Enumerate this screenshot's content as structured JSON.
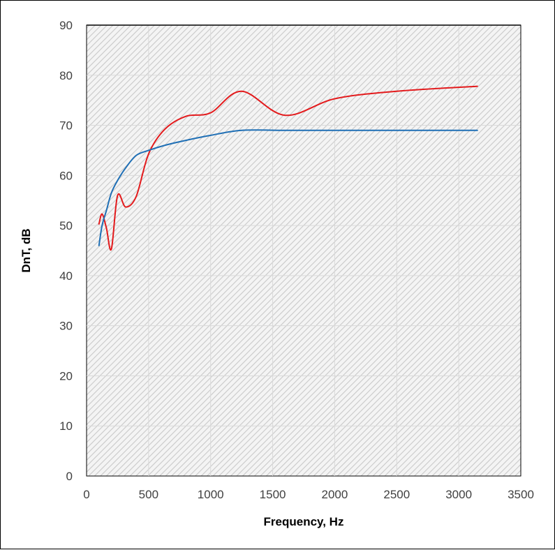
{
  "chart_data": {
    "type": "line",
    "title": "",
    "xlabel": "Frequency, Hz",
    "ylabel": "DnT, dB",
    "xlim": [
      0,
      3500
    ],
    "ylim": [
      0,
      90
    ],
    "xticks": [
      "0",
      "500",
      "1000",
      "1500",
      "2000",
      "2500",
      "3000",
      "3500"
    ],
    "yticks": [
      "0",
      "10",
      "20",
      "30",
      "40",
      "50",
      "60",
      "70",
      "80",
      "90"
    ],
    "grid": true,
    "legend": "none",
    "plot_background": "hatched-light-gray",
    "series": [
      {
        "color": "#e31a1c",
        "x": [
          100,
          125,
          160,
          200,
          250,
          315,
          400,
          500,
          630,
          800,
          1000,
          1250,
          1600,
          2000,
          2500,
          3150
        ],
        "y": [
          50.3,
          52.3,
          49.5,
          45.3,
          56.0,
          53.7,
          55.8,
          64.3,
          69.2,
          71.8,
          72.5,
          76.8,
          72.0,
          75.3,
          76.8,
          77.8
        ]
      },
      {
        "color": "#1f6fb5",
        "x": [
          100,
          125,
          160,
          200,
          250,
          315,
          400,
          500,
          630,
          800,
          1000,
          1250,
          1600,
          2000,
          2500,
          3150
        ],
        "y": [
          46.0,
          50.0,
          53.0,
          56.5,
          59.0,
          61.5,
          64.0,
          65.0,
          66.0,
          67.0,
          68.0,
          69.0,
          69.0,
          69.0,
          69.0,
          69.0
        ]
      }
    ]
  }
}
